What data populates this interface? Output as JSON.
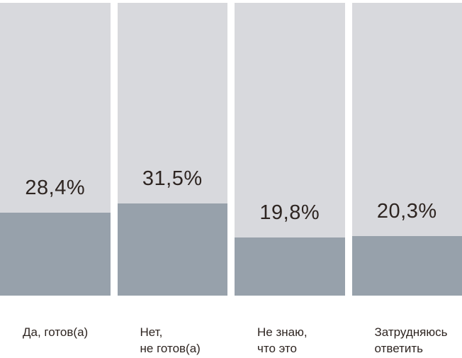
{
  "chart_data": {
    "type": "bar",
    "subtype": "percent-filled-columns",
    "title": "",
    "unit": "%",
    "ylim": [
      0,
      100
    ],
    "grid": false,
    "legend": false,
    "orientation": "vertical",
    "categories": [
      "Да, готов(а)",
      "Нет,\nне готов(а)",
      "Не знаю,\nчто это",
      "Затрудняюсь\nответить"
    ],
    "values": [
      28.4,
      31.5,
      19.8,
      20.3
    ],
    "value_labels": [
      "28,4%",
      "31,5%",
      "19,8%",
      "20,3%"
    ],
    "columns": [
      {
        "category": "Да, готов(а)",
        "value": 28.4,
        "value_label": "28,4%"
      },
      {
        "category": "Нет,\nне готов(а)",
        "value": 31.5,
        "value_label": "31,5%"
      },
      {
        "category": "Не знаю,\nчто это",
        "value": 19.8,
        "value_label": "19,8%"
      },
      {
        "category": "Затрудняюсь\nответить",
        "value": 20.3,
        "value_label": "20,3%"
      }
    ],
    "colors": {
      "background": "#ffffff",
      "track": "#d8d9dd",
      "fill": "#97a1ab",
      "text": "#2e2521"
    }
  }
}
